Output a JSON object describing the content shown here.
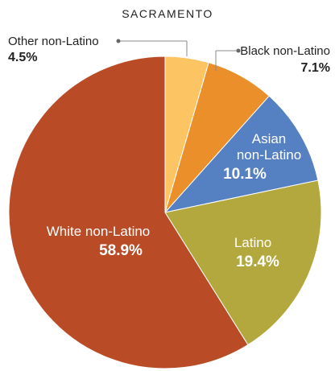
{
  "chart_data": {
    "type": "pie",
    "title": "SACRAMENTO",
    "slices": [
      {
        "label": "Other non-Latino",
        "value": 4.5,
        "display": "4.5%",
        "color": "#fdc463"
      },
      {
        "label": "Black non-Latino",
        "value": 7.1,
        "display": "7.1%",
        "color": "#eb8f2a"
      },
      {
        "label": "Asian non-Latino",
        "value": 10.1,
        "display": "10.1%",
        "color": "#5580c2"
      },
      {
        "label": "Latino",
        "value": 19.4,
        "display": "19.4%",
        "color": "#b3a83e"
      },
      {
        "label": "White non-Latino",
        "value": 58.9,
        "display": "58.9%",
        "color": "#b94c27"
      }
    ]
  }
}
